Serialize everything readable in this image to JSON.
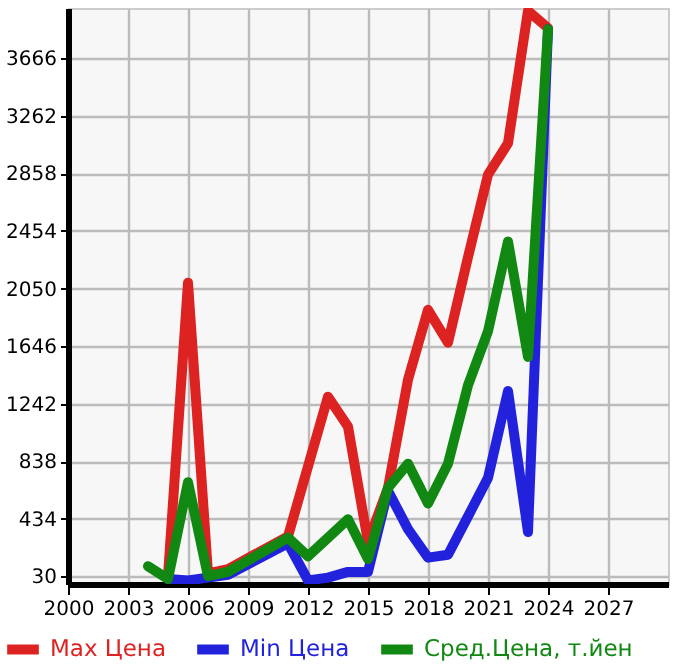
{
  "chart_data": {
    "type": "line",
    "xlim": [
      2000,
      2030
    ],
    "xticks": [
      2000,
      2003,
      2006,
      2009,
      2012,
      2015,
      2018,
      2021,
      2024,
      2027
    ],
    "ylim": [
      -25,
      4020
    ],
    "yticks": [
      30,
      434,
      838,
      1242,
      1646,
      2050,
      2454,
      2858,
      3262,
      3666
    ],
    "grid": true,
    "legend": "bottom",
    "line_style": "solid",
    "marker": "none",
    "series": [
      {
        "name": "Max Цена",
        "color": "#dd2222",
        "x": [
          2005,
          2006,
          2007,
          2008,
          2011,
          2013,
          2014,
          2015,
          2016,
          2017,
          2018,
          2019,
          2020,
          2021,
          2022,
          2023,
          2024
        ],
        "values": [
          30,
          2090,
          50,
          80,
          310,
          1290,
          1080,
          270,
          650,
          1410,
          1900,
          1670,
          2270,
          2850,
          3070,
          4000,
          3880
        ]
      },
      {
        "name": "Min Цена",
        "color": "#2222dd",
        "x": [
          2005,
          2006,
          2007,
          2008,
          2011,
          2012,
          2013,
          2014,
          2015,
          2016,
          2017,
          2018,
          2019,
          2020,
          2021,
          2022,
          2023,
          2024
        ],
        "values": [
          10,
          0,
          20,
          40,
          260,
          0,
          20,
          60,
          60,
          630,
          360,
          160,
          180,
          450,
          720,
          1330,
          340,
          3870
        ]
      },
      {
        "name": "Сред.Цена, т.йен",
        "color": "#118811",
        "x": [
          2004,
          2005,
          2006,
          2007,
          2008,
          2011,
          2012,
          2014,
          2015,
          2016,
          2017,
          2018,
          2019,
          2020,
          2021,
          2022,
          2023,
          2024
        ],
        "values": [
          100,
          10,
          690,
          30,
          60,
          300,
          170,
          430,
          150,
          650,
          820,
          540,
          820,
          1370,
          1750,
          2380,
          1570,
          3870
        ]
      }
    ]
  }
}
